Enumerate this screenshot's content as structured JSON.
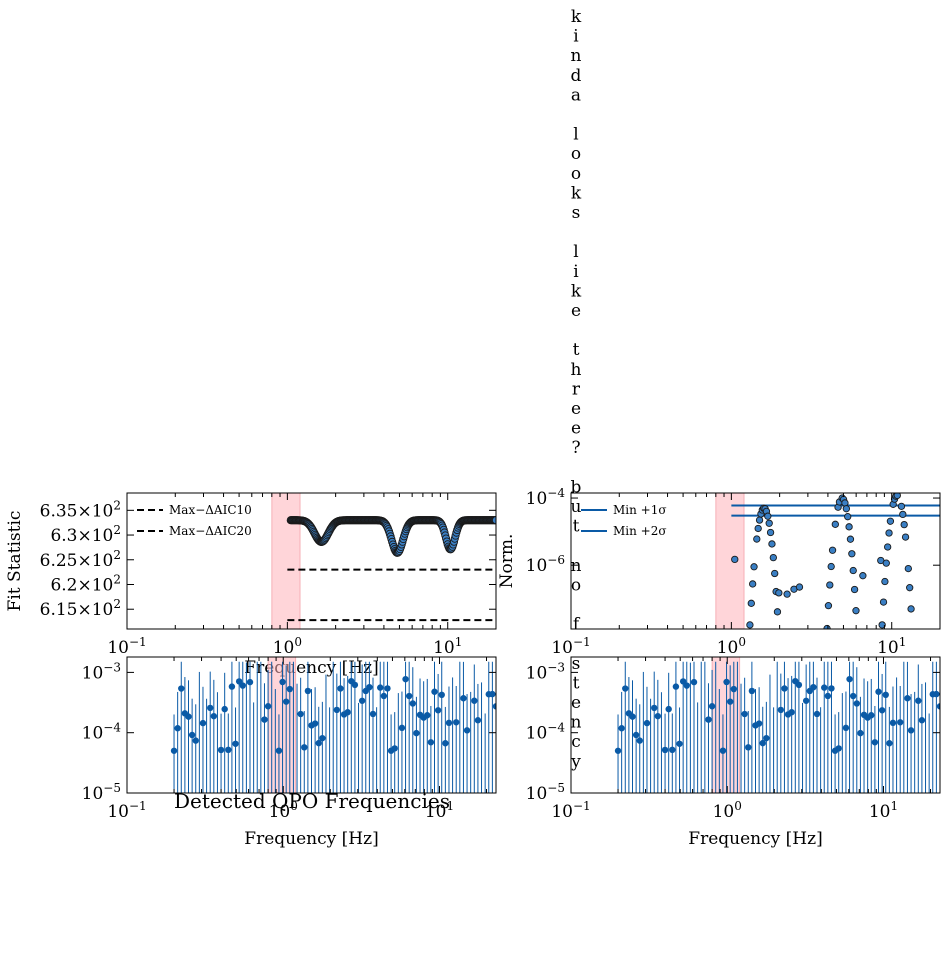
{
  "figure_title": "Detected QPO Frequencies",
  "vertical_text": "kinda looks like three? but no f stency",
  "colors": {
    "series": "#0a5aa6",
    "marker_edge": "#1a1a1a",
    "band": "#ffb3ba",
    "dashed": "#000000"
  },
  "chart_data": [
    {
      "id": "fit-statistic",
      "type": "scatter",
      "title": "",
      "xlabel": "Frequency [Hz]",
      "ylabel": "Fit Statistic",
      "xscale": "log",
      "xlim": [
        0.1,
        20
      ],
      "ylim": [
        611,
        638.5
      ],
      "xticks": [
        {
          "v": 0.1,
          "label": "10^-1"
        },
        {
          "v": 1,
          "label": "10^0"
        },
        {
          "v": 10,
          "label": "10^1"
        }
      ],
      "yticks": [
        {
          "v": 615,
          "label": "6.15×10^2"
        },
        {
          "v": 620,
          "label": "6.2×10^2"
        },
        {
          "v": 625,
          "label": "6.25×10^2"
        },
        {
          "v": 630,
          "label": "6.3×10^2"
        },
        {
          "v": 635,
          "label": "6.35×10^2"
        }
      ],
      "shaded_band": [
        0.8,
        1.2
      ],
      "legend": {
        "placement": "upper-left",
        "entries": [
          "Max−ΔAIC10",
          "Max−ΔAIC20"
        ]
      },
      "hlines": [
        {
          "name": "Max−ΔAIC10",
          "y": 623,
          "x_start": 1.0,
          "style": "dashed"
        },
        {
          "name": "Max−ΔAIC20",
          "y": 612.8,
          "x_start": 1.0,
          "style": "dashed"
        }
      ],
      "baseline": 633.0,
      "dips": [
        {
          "center": 1.63,
          "depth": 4.4,
          "width": 0.06
        },
        {
          "center": 4.85,
          "depth": 6.6,
          "width": 0.05
        },
        {
          "center": 10.4,
          "depth": 5.9,
          "width": 0.04
        }
      ],
      "x_range": [
        1.05,
        20
      ]
    },
    {
      "id": "norm",
      "type": "scatter",
      "title": "",
      "xlabel": "",
      "ylabel": "Norm.",
      "xscale": "log",
      "yscale": "log",
      "xlim": [
        0.1,
        20
      ],
      "ylim_exp": [
        -7.9,
        -3.85
      ],
      "xticks": [
        {
          "v": 0.1,
          "label": "10^-1"
        },
        {
          "v": 1,
          "label": "10^0"
        },
        {
          "v": 10,
          "label": "10^1"
        }
      ],
      "yticks": [
        {
          "e": -4,
          "label": "10^-4"
        },
        {
          "e": -6,
          "label": "10^-6"
        }
      ],
      "shaded_band": [
        0.8,
        1.2
      ],
      "legend": {
        "placement": "upper-left",
        "entries": [
          "Min +1σ",
          "Min +2σ"
        ]
      },
      "hlines": [
        {
          "name": "Min +1σ",
          "y": 6e-05,
          "x_start": 1.0
        },
        {
          "name": "Min +2σ",
          "y": 3e-05,
          "x_start": 1.0
        }
      ],
      "peaks": [
        {
          "center": 1.6,
          "peak": 5e-05
        },
        {
          "center": 4.9,
          "peak": 0.0001
        },
        {
          "center": 10.8,
          "peak": 0.00012
        }
      ],
      "x_range": [
        1.05,
        20
      ]
    },
    {
      "id": "power-left",
      "type": "scatter",
      "title": "",
      "xlabel": "Frequency [Hz]",
      "ylabel": "",
      "xscale": "log",
      "yscale": "log",
      "xlim": [
        0.1,
        23
      ],
      "ylim": [
        1e-05,
        0.0018
      ],
      "xticks": [
        {
          "v": 0.1,
          "label": "10^-1"
        },
        {
          "v": 1,
          "label": "10^0"
        },
        {
          "v": 10,
          "label": "10^1"
        }
      ],
      "yticks": [
        {
          "e": -3,
          "label": "10^-3"
        },
        {
          "e": -4,
          "label": "10^-4"
        },
        {
          "e": -5,
          "label": "10^-5"
        }
      ],
      "shaded_band": [
        0.8,
        1.2
      ],
      "x_range": [
        0.2,
        23
      ],
      "n_points": 90
    },
    {
      "id": "power-right",
      "type": "scatter",
      "title": "",
      "xlabel": "Frequency [Hz]",
      "ylabel": "",
      "xscale": "log",
      "yscale": "log",
      "xlim": [
        0.1,
        23
      ],
      "ylim": [
        1e-05,
        0.0018
      ],
      "xticks": [
        {
          "v": 0.1,
          "label": "10^-1"
        },
        {
          "v": 1,
          "label": "10^0"
        },
        {
          "v": 10,
          "label": "10^1"
        }
      ],
      "yticks": [
        {
          "e": -3,
          "label": "10^-3"
        },
        {
          "e": -4,
          "label": "10^-4"
        },
        {
          "e": -5,
          "label": "10^-5"
        }
      ],
      "shaded_band": [
        0.8,
        1.2
      ],
      "x_range": [
        0.2,
        23
      ],
      "n_points": 90
    }
  ]
}
